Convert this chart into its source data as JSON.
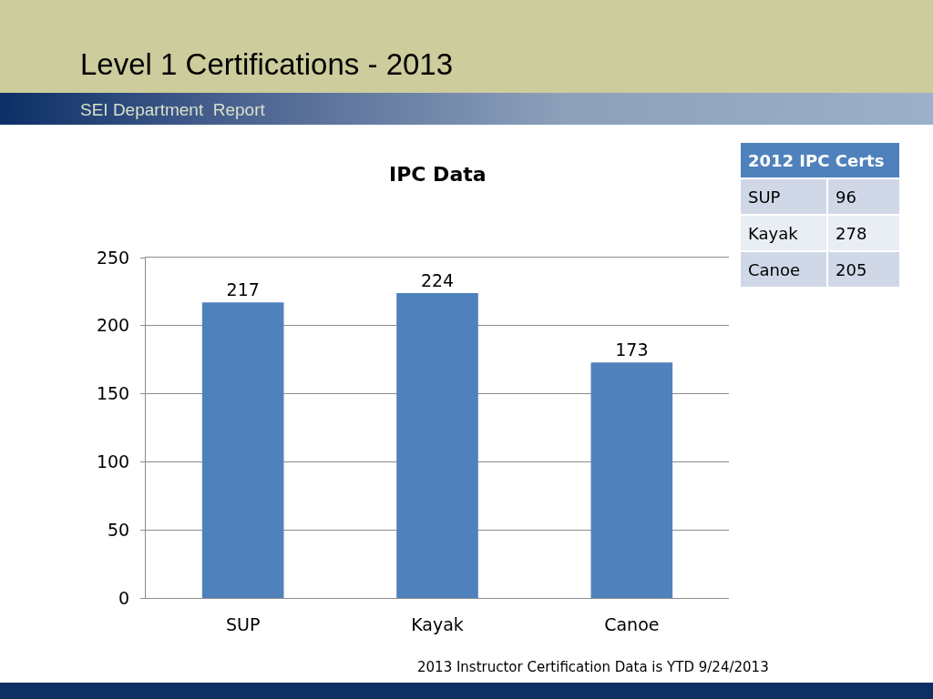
{
  "chart_data": [
    {
      "type": "bar",
      "title": "Level 1 Certifications - 2013",
      "subtitle": "SEI Department  Report",
      "annotations": [
        "IPC Data",
        "2013 Instructor Certification Data is YTD 9/24/2013"
      ],
      "categories": [
        "SUP",
        "Kayak",
        "Canoe"
      ],
      "values": [
        217,
        224,
        173
      ],
      "color": "#4f81bd",
      "data_labels": true,
      "ylim": [
        0,
        250
      ],
      "yticks": [
        0,
        50,
        100,
        150,
        200,
        250
      ],
      "grid": "y"
    },
    {
      "type": "other",
      "title": "2012 IPC Certs",
      "categories": [
        "SUP",
        "Kayak",
        "Canoe"
      ],
      "values": [
        96,
        278,
        205
      ],
      "data_labels": true
    }
  ]
}
